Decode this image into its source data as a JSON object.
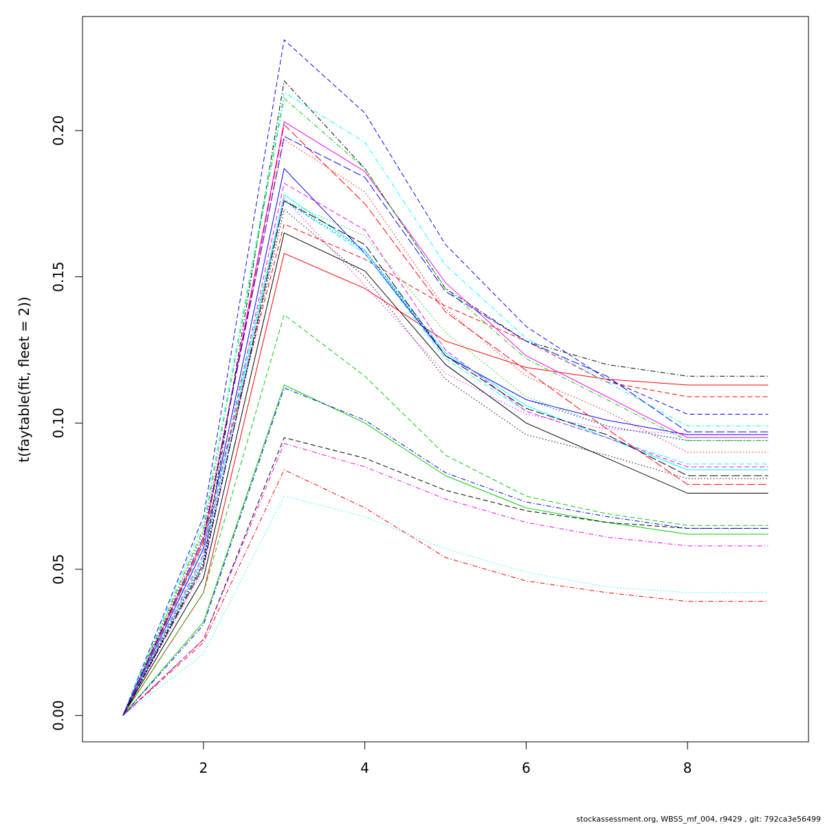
{
  "chart_data": {
    "type": "line",
    "title": "",
    "xlabel": "",
    "ylabel": "t(faytable(fit, fleet = 2))",
    "xlim": [
      0.5,
      9.5
    ],
    "ylim": [
      -0.009,
      0.239
    ],
    "x_ticks": [
      2,
      4,
      6,
      8
    ],
    "y_ticks": [
      0.0,
      0.05,
      0.1,
      0.15,
      0.2
    ],
    "x_tick_labels": [
      "2",
      "4",
      "6",
      "8"
    ],
    "y_tick_labels": [
      "0.00",
      "0.05",
      "0.10",
      "0.15",
      "0.20"
    ],
    "grid": false,
    "legend": "none",
    "x": [
      1,
      2,
      3,
      4,
      5,
      6,
      7,
      8,
      9
    ],
    "series": [
      {
        "color": "#000000",
        "dash": "solid",
        "values": [
          0,
          0.047,
          0.165,
          0.152,
          0.12,
          0.1,
          0.088,
          0.076,
          0.076
        ]
      },
      {
        "color": "#ff0000",
        "dash": "solid",
        "values": [
          0,
          0.042,
          0.158,
          0.146,
          0.128,
          0.119,
          0.115,
          0.113,
          0.113
        ]
      },
      {
        "color": "#00cd00",
        "dash": "solid",
        "values": [
          0,
          0.032,
          0.113,
          0.1,
          0.082,
          0.071,
          0.066,
          0.062,
          0.062
        ]
      },
      {
        "color": "#0000ff",
        "dash": "solid",
        "values": [
          0,
          0.057,
          0.187,
          0.158,
          0.123,
          0.108,
          0.101,
          0.096,
          0.096
        ]
      },
      {
        "color": "#00ffff",
        "dash": "solid",
        "values": [
          0,
          0.054,
          0.178,
          0.159,
          0.124,
          0.106,
          0.095,
          0.084,
          0.084
        ]
      },
      {
        "color": "#ff00ff",
        "dash": "solid",
        "values": [
          0,
          0.06,
          0.203,
          0.186,
          0.148,
          0.123,
          0.109,
          0.095,
          0.095
        ]
      },
      {
        "color": "#000000",
        "dash": "dashed",
        "values": [
          0,
          0.026,
          0.095,
          0.088,
          0.077,
          0.07,
          0.066,
          0.064,
          0.064
        ]
      },
      {
        "color": "#ff0000",
        "dash": "dashed",
        "values": [
          0,
          0.06,
          0.168,
          0.156,
          0.14,
          0.128,
          0.114,
          0.109,
          0.109
        ]
      },
      {
        "color": "#00cd00",
        "dash": "dashed",
        "values": [
          0,
          0.042,
          0.137,
          0.116,
          0.089,
          0.075,
          0.069,
          0.065,
          0.065
        ]
      },
      {
        "color": "#0000ff",
        "dash": "dashed",
        "values": [
          0,
          0.068,
          0.231,
          0.206,
          0.161,
          0.133,
          0.115,
          0.103,
          0.103
        ]
      },
      {
        "color": "#00ffff",
        "dash": "dashed",
        "values": [
          0,
          0.058,
          0.176,
          0.158,
          0.122,
          0.104,
          0.095,
          0.086,
          0.086
        ]
      },
      {
        "color": "#ff00ff",
        "dash": "dashed",
        "values": [
          0,
          0.055,
          0.182,
          0.166,
          0.125,
          0.104,
          0.095,
          0.085,
          0.085
        ]
      },
      {
        "color": "#000000",
        "dash": "dotted",
        "values": [
          0,
          0.053,
          0.173,
          0.15,
          0.115,
          0.096,
          0.089,
          0.081,
          0.081
        ]
      },
      {
        "color": "#ff0000",
        "dash": "dotted",
        "values": [
          0,
          0.063,
          0.197,
          0.179,
          0.139,
          0.116,
          0.104,
          0.09,
          0.09
        ]
      },
      {
        "color": "#00cd00",
        "dash": "dotted",
        "values": [
          0,
          0.062,
          0.176,
          0.164,
          0.131,
          0.109,
          0.099,
          0.094,
          0.094
        ]
      },
      {
        "color": "#0000ff",
        "dash": "dotted",
        "values": [
          0,
          0.052,
          0.176,
          0.159,
          0.123,
          0.108,
          0.099,
          0.094,
          0.094
        ]
      },
      {
        "color": "#00ffff",
        "dash": "dotted",
        "values": [
          0,
          0.021,
          0.075,
          0.068,
          0.057,
          0.049,
          0.044,
          0.042,
          0.042
        ]
      },
      {
        "color": "#ff00ff",
        "dash": "dotted",
        "values": [
          0,
          0.05,
          0.177,
          0.147,
          0.117,
          0.103,
          0.098,
          0.096,
          0.096
        ]
      },
      {
        "color": "#000000",
        "dash": "dotdash",
        "values": [
          0,
          0.052,
          0.217,
          0.187,
          0.146,
          0.128,
          0.12,
          0.116,
          0.116
        ]
      },
      {
        "color": "#ff0000",
        "dash": "dotdash",
        "values": [
          0,
          0.025,
          0.084,
          0.071,
          0.054,
          0.046,
          0.042,
          0.039,
          0.039
        ]
      },
      {
        "color": "#00cd00",
        "dash": "dotdash",
        "values": [
          0,
          0.064,
          0.211,
          0.187,
          0.146,
          0.122,
          0.108,
          0.094,
          0.094
        ]
      },
      {
        "color": "#0000ff",
        "dash": "dotdash",
        "values": [
          0,
          0.031,
          0.112,
          0.101,
          0.083,
          0.073,
          0.068,
          0.064,
          0.064
        ]
      },
      {
        "color": "#00ffff",
        "dash": "dotdash",
        "values": [
          0,
          0.066,
          0.213,
          0.196,
          0.154,
          0.129,
          0.114,
          0.099,
          0.099
        ]
      },
      {
        "color": "#ff00ff",
        "dash": "dotdash",
        "values": [
          0,
          0.026,
          0.093,
          0.085,
          0.074,
          0.066,
          0.061,
          0.058,
          0.058
        ]
      },
      {
        "color": "#000000",
        "dash": "longdash",
        "values": [
          0,
          0.051,
          0.176,
          0.161,
          0.123,
          0.105,
          0.096,
          0.082,
          0.082
        ]
      },
      {
        "color": "#ff0000",
        "dash": "longdash",
        "values": [
          0,
          0.059,
          0.202,
          0.175,
          0.138,
          0.118,
          0.098,
          0.079,
          0.079
        ]
      },
      {
        "color": "#0000ff",
        "dash": "longdash",
        "values": [
          0,
          0.061,
          0.198,
          0.184,
          0.145,
          0.128,
          0.116,
          0.097,
          0.097
        ]
      }
    ]
  },
  "footer": {
    "text": "stockassessment.org, WBSS_mf_004, r9429 , git: 792ca3e56499"
  }
}
